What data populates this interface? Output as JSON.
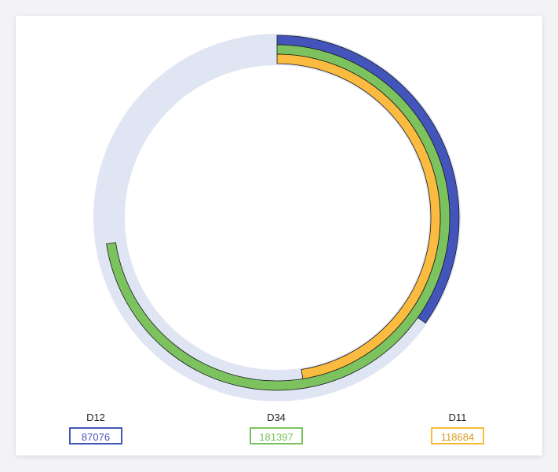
{
  "chart_data": {
    "type": "radial-bar",
    "max": 250000,
    "colors": {
      "track": "#e0e5f4",
      "stroke": "#1a1a1a"
    },
    "series": [
      {
        "name": "D12",
        "value": 87076,
        "color": "#4355bb"
      },
      {
        "name": "D34",
        "value": 181397,
        "color": "#7cc35f"
      },
      {
        "name": "D11",
        "value": 118684,
        "color": "#fbbb40"
      }
    ]
  }
}
